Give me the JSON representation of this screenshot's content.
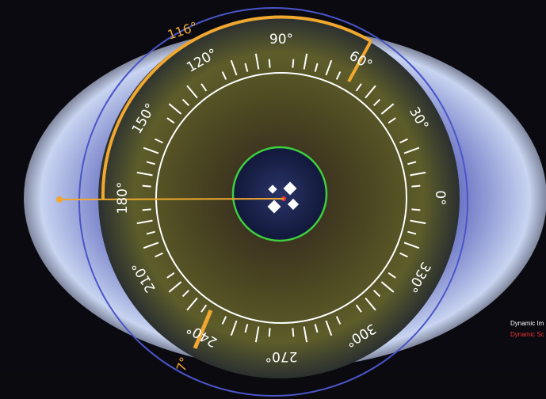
{
  "scale_labels": [
    "0°",
    "30°",
    "60°",
    "90°",
    "120°",
    "150°",
    "180°",
    "210°",
    "240°",
    "270°",
    "300°",
    "330°"
  ],
  "overlay": {
    "arc_label": "116°",
    "marker_label": "7°"
  },
  "status": {
    "line1": "Dynamic Im",
    "line2": "Dynamic Sc"
  }
}
